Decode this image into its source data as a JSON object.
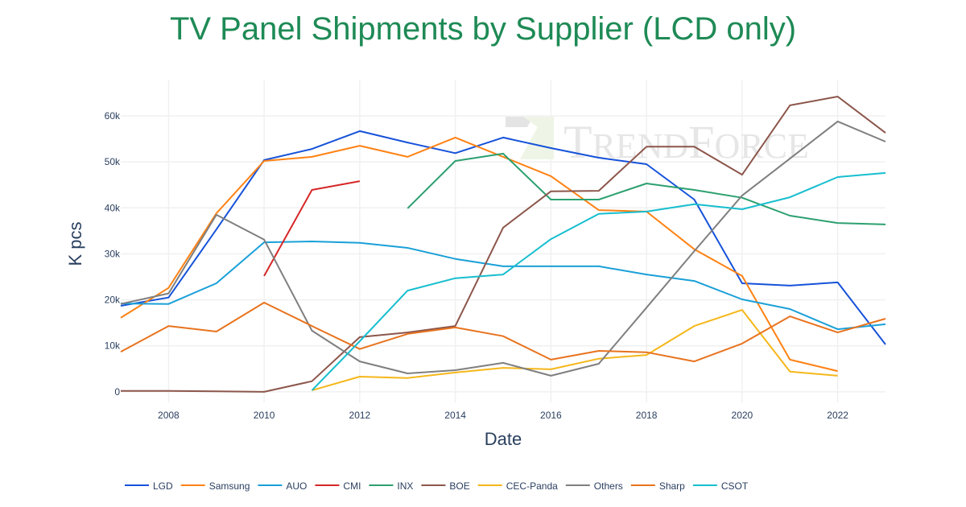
{
  "chart_data": {
    "type": "line",
    "title": "TV Panel Shipments by Supplier (LCD only)",
    "xlabel": "Date",
    "ylabel": "K pcs",
    "xlim": [
      2007,
      2023
    ],
    "ylim": [
      -2.3,
      67.7
    ],
    "xticks": [
      2008,
      2010,
      2012,
      2014,
      2016,
      2018,
      2020,
      2022
    ],
    "yticks": [
      0,
      10,
      20,
      30,
      40,
      50,
      60
    ],
    "ytick_labels": [
      "0",
      "10k",
      "20k",
      "30k",
      "40k",
      "50k",
      "60k"
    ],
    "grid": true,
    "legend_position": "bottom",
    "watermark": "TrendForce",
    "series": [
      {
        "name": "LGD",
        "color": "#1652d9",
        "x_start": 2007,
        "values": [
          18.7,
          20.5,
          35.3,
          50.4,
          52.8,
          56.7,
          54.2,
          51.9,
          55.3,
          53.0,
          50.9,
          49.5,
          41.8,
          23.6,
          23.1,
          23.8,
          10.3
        ]
      },
      {
        "name": "Samsung",
        "color": "#ff8214",
        "x_start": 2007,
        "values": [
          16.1,
          22.6,
          38.8,
          50.2,
          51.1,
          53.5,
          51.1,
          55.3,
          51.1,
          46.9,
          39.5,
          39.2,
          31.0,
          25.2,
          7.0,
          4.5
        ]
      },
      {
        "name": "AUO",
        "color": "#1aa0d8",
        "x_start": 2007,
        "values": [
          19.2,
          19.1,
          23.6,
          32.5,
          32.7,
          32.4,
          31.3,
          28.9,
          27.3,
          27.3,
          27.3,
          25.5,
          24.1,
          20.1,
          18.0,
          13.6,
          14.7
        ]
      },
      {
        "name": "CMI",
        "color": "#d62728",
        "x_start": 2010,
        "values": [
          25.2,
          43.9,
          45.8
        ]
      },
      {
        "name": "INX",
        "color": "#2ca070",
        "x_start": 2013,
        "values": [
          39.9,
          50.2,
          51.8,
          41.8,
          41.8,
          45.3,
          43.9,
          42.2,
          38.3,
          36.7,
          36.4
        ]
      },
      {
        "name": "BOE",
        "color": "#8c564b",
        "x_start": 2007,
        "values": [
          0.2,
          0.2,
          0.1,
          0.0,
          2.3,
          11.9,
          12.9,
          14.3,
          35.7,
          43.6,
          43.7,
          53.3,
          53.3,
          47.2,
          62.3,
          64.2,
          56.3
        ]
      },
      {
        "name": "CEC-Panda",
        "color": "#f5b71a",
        "x_start": 2011,
        "values": [
          0.3,
          3.3,
          3.0,
          4.2,
          5.2,
          4.9,
          7.2,
          8.0,
          14.3,
          17.8,
          4.4,
          3.5
        ]
      },
      {
        "name": "Others",
        "color": "#7f7f7f",
        "x_start": 2007,
        "values": [
          19.1,
          21.4,
          38.5,
          33.1,
          13.3,
          6.6,
          4.0,
          4.7,
          6.3,
          3.5,
          6.1,
          18.3,
          30.6,
          42.7,
          50.7,
          58.8,
          54.4
        ]
      },
      {
        "name": "Sharp",
        "color": "#e8731e",
        "x_start": 2007,
        "values": [
          8.7,
          14.3,
          13.1,
          19.4,
          14.3,
          9.3,
          12.6,
          14.0,
          12.1,
          7.0,
          8.9,
          8.6,
          6.6,
          10.5,
          16.4,
          12.9,
          15.9
        ]
      },
      {
        "name": "CSOT",
        "color": "#17becf",
        "x_start": 2011,
        "values": [
          0.3,
          11.0,
          22.0,
          24.7,
          25.5,
          33.2,
          38.7,
          39.2,
          40.8,
          39.7,
          42.3,
          46.7,
          47.6
        ]
      }
    ]
  }
}
